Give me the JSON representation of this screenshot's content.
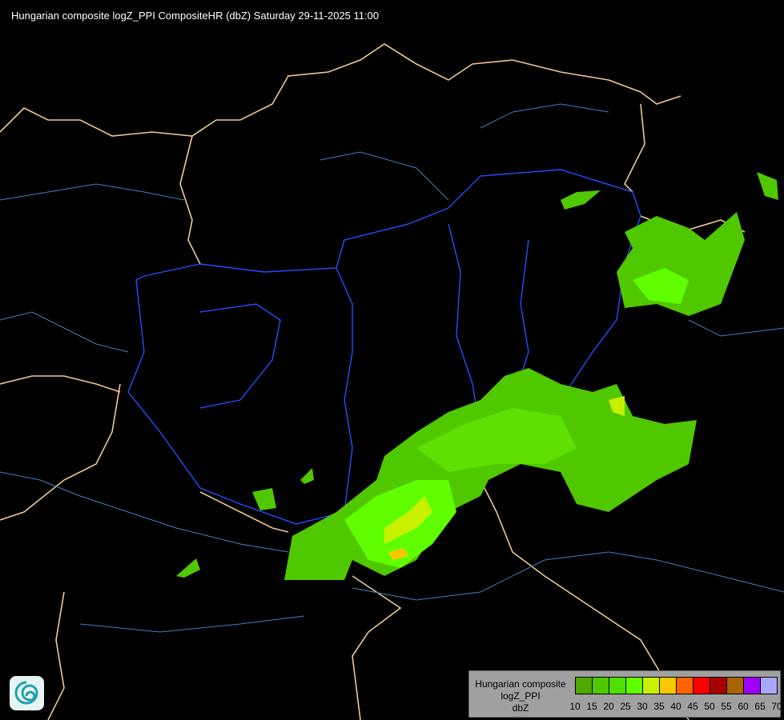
{
  "title": "Hungarian composite logZ_PPI CompositeHR (dbZ) Saturday 29-11-2025 11:00",
  "legend": {
    "lines": [
      "Hungarian composite",
      "logZ_PPI",
      "dbZ"
    ],
    "ticks": [
      "10",
      "15",
      "20",
      "25",
      "30",
      "35",
      "40",
      "45",
      "50",
      "55",
      "60",
      "65",
      "70"
    ],
    "colors": [
      "#50a800",
      "#50c800",
      "#50e000",
      "#60ff00",
      "#c8f000",
      "#f8c800",
      "#ff6400",
      "#ff0000",
      "#a80000",
      "#a86400",
      "#a000ff",
      "#a8a8ff"
    ]
  },
  "map": {
    "border_color": "#f0c890",
    "hungary_border_color": "#2050ff",
    "river_color": "#4080c0",
    "echo_colors": {
      "weak": "#50c800",
      "moderate": "#60ff00",
      "strong": "#c8f000",
      "heavy": "#f8c800"
    }
  },
  "logo": {
    "icon": "met-service-logo"
  }
}
